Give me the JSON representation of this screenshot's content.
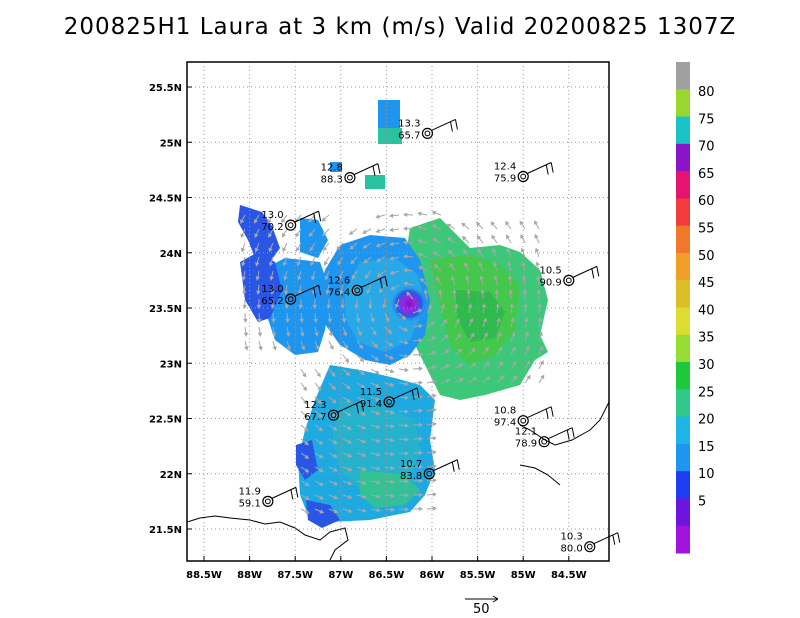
{
  "title": "200825H1 Laura at 3 km (m/s) Valid 20200825 1307Z",
  "map": {
    "lat_labels": [
      "25.5N",
      "25N",
      "24.5N",
      "24N",
      "23.5N",
      "23N",
      "22.5N",
      "22N",
      "21.5N"
    ],
    "lon_labels": [
      "88.5W",
      "88W",
      "87.5W",
      "87W",
      "86.5W",
      "86W",
      "85.5W",
      "85W",
      "84.5W"
    ],
    "grid": "dotted",
    "storm_center": {
      "lat": 23.55,
      "lon": 86.25
    }
  },
  "colorbar": {
    "labels": [
      "80",
      "75",
      "70",
      "65",
      "60",
      "55",
      "50",
      "45",
      "40",
      "35",
      "30",
      "25",
      "20",
      "15",
      "10",
      "5"
    ],
    "colors": [
      "#a0a0a0",
      "#9ad630",
      "#19c3c8",
      "#8a14c8",
      "#e6146e",
      "#f03c3c",
      "#f0782a",
      "#f0a028",
      "#dcbe28",
      "#dcdc32",
      "#96dc32",
      "#1ec83c",
      "#32c88c",
      "#1eb4e6",
      "#1e96f0",
      "#1e3cf0",
      "#6e14dc",
      "#a014dc"
    ]
  },
  "stations": [
    {
      "lat": 25.08,
      "lon": 86.05,
      "top": "13.3",
      "bottom": "65.7"
    },
    {
      "lat": 24.68,
      "lon": 86.9,
      "top": "12.8",
      "bottom": "88.3"
    },
    {
      "lat": 24.69,
      "lon": 85.0,
      "top": "12.4",
      "bottom": "75.9"
    },
    {
      "lat": 24.25,
      "lon": 87.55,
      "top": "13.0",
      "bottom": "70.2"
    },
    {
      "lat": 23.75,
      "lon": 84.5,
      "top": "10.5",
      "bottom": "90.9"
    },
    {
      "lat": 23.66,
      "lon": 86.82,
      "top": "12.6",
      "bottom": "76.4"
    },
    {
      "lat": 23.58,
      "lon": 87.55,
      "top": "13.0",
      "bottom": "65.2"
    },
    {
      "lat": 22.65,
      "lon": 86.47,
      "top": "11.5",
      "bottom": "91.4"
    },
    {
      "lat": 22.53,
      "lon": 87.08,
      "top": "12.3",
      "bottom": "67.7"
    },
    {
      "lat": 22.48,
      "lon": 85.0,
      "top": "10.8",
      "bottom": "97.4"
    },
    {
      "lat": 22.29,
      "lon": 84.77,
      "top": "12.1",
      "bottom": "78.9"
    },
    {
      "lat": 22.0,
      "lon": 86.03,
      "top": "10.7",
      "bottom": "83.8"
    },
    {
      "lat": 21.75,
      "lon": 87.8,
      "top": "11.9",
      "bottom": "59.1"
    },
    {
      "lat": 21.34,
      "lon": 84.27,
      "top": "10.3",
      "bottom": "80.0"
    }
  ],
  "reference_vector": {
    "label": "50"
  }
}
